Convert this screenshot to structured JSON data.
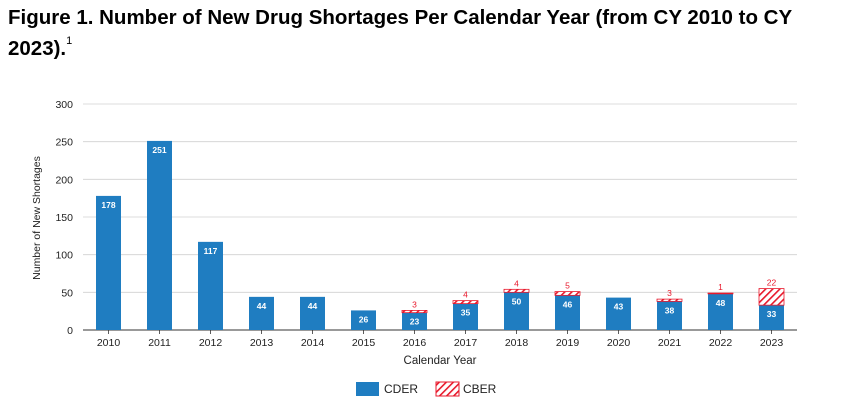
{
  "figure": {
    "title": "Figure 1.  Number of New Drug Shortages Per Calendar Year (from CY 2010 to CY 2023).",
    "footnote": "1"
  },
  "colors": {
    "cder": "#1f7dc1",
    "cber": "#e8192c",
    "grid": "#d0d0d0",
    "axis": "#333333",
    "text": "#222222"
  },
  "chart_data": {
    "type": "bar",
    "stacked": true,
    "categories": [
      "2010",
      "2011",
      "2012",
      "2013",
      "2014",
      "2015",
      "2016",
      "2017",
      "2018",
      "2019",
      "2020",
      "2021",
      "2022",
      "2023"
    ],
    "series": [
      {
        "name": "CDER",
        "values": [
          178,
          251,
          117,
          44,
          44,
          26,
          23,
          35,
          50,
          46,
          43,
          38,
          48,
          33
        ],
        "pattern": "solid"
      },
      {
        "name": "CBER",
        "values": [
          0,
          0,
          0,
          0,
          0,
          0,
          3,
          4,
          4,
          5,
          0,
          3,
          1,
          22
        ],
        "pattern": "hatched"
      }
    ],
    "xlabel": "Calendar Year",
    "ylabel": "Number of New Shortages",
    "ylim": [
      0,
      300
    ],
    "yticks": [
      0,
      50,
      100,
      150,
      200,
      250,
      300
    ],
    "grid": true,
    "legend": "bottom-center"
  }
}
